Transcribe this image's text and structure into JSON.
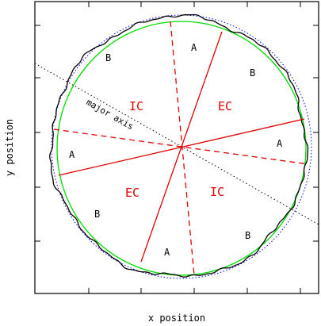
{
  "axes": {
    "xlabel": "x position",
    "ylabel": "y position"
  },
  "region_labels": {
    "ic": "IC",
    "ec": "EC",
    "a": "A",
    "b": "B"
  },
  "annotation": {
    "major_axis": "major axis"
  },
  "colors": {
    "frame": "#000000",
    "fit_circle": "#00dd00",
    "outline": "#000000",
    "reference_ellipse": "#0000ff",
    "solid_division": "#e00000",
    "dashed_division": "#e00000",
    "major_axis_line": "#000000",
    "region_label_ic_ec": "#e00000",
    "region_label_ab": "#000000"
  }
}
